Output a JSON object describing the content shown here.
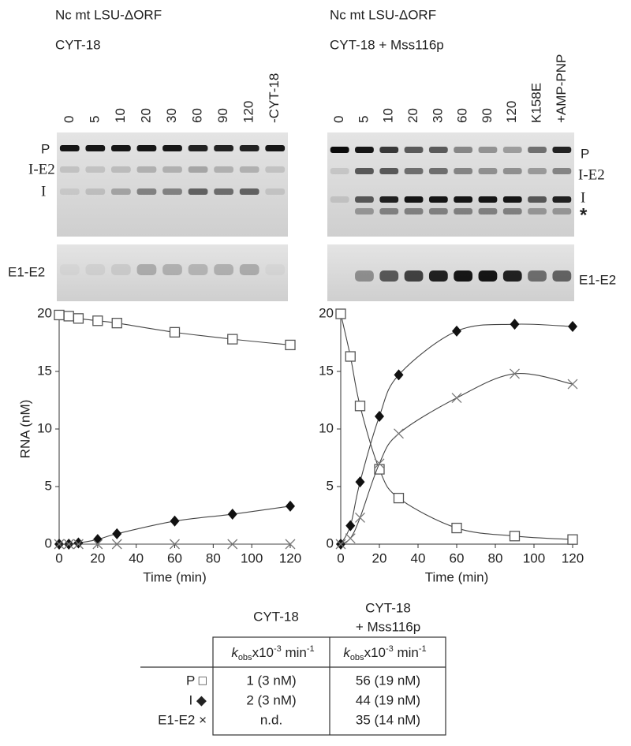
{
  "panels": [
    {
      "title": "Nc mt LSU-ΔORF",
      "condition": "CYT-18",
      "lanes": [
        "0",
        "5",
        "10",
        "20",
        "30",
        "60",
        "90",
        "120",
        "-CYT-18"
      ],
      "band_labels": [
        "P",
        "I-E2",
        "I"
      ],
      "lower_label": "E1-E2"
    },
    {
      "title": "Nc mt LSU-ΔORF",
      "condition": "CYT-18 + Mss116p",
      "lanes": [
        "0",
        "5",
        "10",
        "20",
        "30",
        "60",
        "90",
        "120",
        "K158E",
        "+AMP-PNP"
      ],
      "band_labels": [
        "P",
        "I-E2",
        "I",
        "*"
      ],
      "lower_label": "E1-E2"
    }
  ],
  "chart_data": [
    {
      "type": "line",
      "xlabel": "Time (min)",
      "ylabel": "RNA (nM)",
      "x": [
        0,
        5,
        10,
        20,
        30,
        60,
        90,
        120
      ],
      "xlim": [
        0,
        120
      ],
      "xticks": [
        0,
        20,
        40,
        60,
        80,
        100,
        120
      ],
      "ylim": [
        0,
        20
      ],
      "yticks": [
        0,
        5,
        10,
        15,
        20
      ],
      "series": [
        {
          "marker": "square",
          "color": "#555555",
          "values": [
            19.9,
            19.8,
            19.6,
            19.4,
            19.2,
            18.4,
            17.8,
            17.3
          ]
        },
        {
          "marker": "diamond",
          "color": "#111111",
          "values": [
            0,
            0,
            0.1,
            0.4,
            0.9,
            2.0,
            2.6,
            3.3
          ]
        },
        {
          "marker": "cross",
          "color": "#777777",
          "values": [
            0,
            0,
            0,
            0,
            0,
            0,
            0,
            0
          ]
        }
      ]
    },
    {
      "type": "line",
      "xlabel": "Time (min)",
      "x": [
        0,
        5,
        10,
        20,
        30,
        60,
        90,
        120
      ],
      "xlim": [
        0,
        120
      ],
      "xticks": [
        0,
        20,
        40,
        60,
        80,
        100,
        120
      ],
      "ylim": [
        0,
        20
      ],
      "yticks": [
        0,
        5,
        10,
        15,
        20
      ],
      "series": [
        {
          "marker": "square",
          "color": "#555555",
          "values": [
            20,
            16.3,
            12,
            6.5,
            4.0,
            1.4,
            0.7,
            0.4
          ]
        },
        {
          "marker": "diamond",
          "color": "#111111",
          "values": [
            0,
            1.6,
            5.4,
            11.1,
            14.7,
            18.5,
            19.1,
            18.9
          ]
        },
        {
          "marker": "cross",
          "color": "#777777",
          "values": [
            0,
            0.5,
            2.3,
            7.0,
            9.6,
            12.7,
            14.8,
            13.9
          ]
        }
      ]
    }
  ],
  "table": {
    "columns": [
      [
        "CYT-18"
      ],
      [
        "CYT-18",
        "+ Mss116p"
      ]
    ],
    "header": [
      [
        "k",
        "obs",
        "x10",
        "-3",
        " min",
        "-1"
      ],
      [
        "k",
        "obs",
        "x10",
        "-3",
        " min",
        "-1"
      ]
    ],
    "rows": [
      [
        "P □",
        "1 (3 nM)",
        "56 (19 nM)"
      ],
      [
        "I ◆",
        "2 (3 nM)",
        "44 (19 nM)"
      ],
      [
        "E1-E2 ×",
        "n.d.",
        "35 (14 nM)"
      ]
    ]
  }
}
